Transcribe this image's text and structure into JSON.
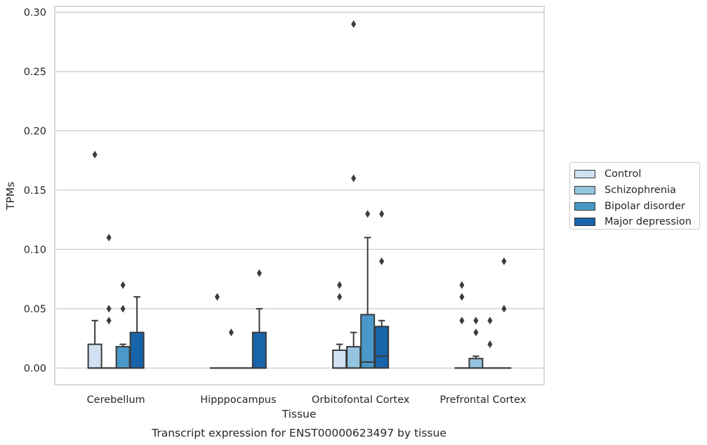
{
  "chart_data": {
    "type": "box",
    "title": "",
    "caption": "Transcript expression for ENST00000623497 by tissue",
    "xlabel": "Tissue",
    "ylabel": "TPMs",
    "ylim": [
      -0.014,
      0.305
    ],
    "yticks": [
      "0.00",
      "0.05",
      "0.10",
      "0.15",
      "0.20",
      "0.25",
      "0.30"
    ],
    "grid": true,
    "legend_position": "right",
    "categories": [
      "Cerebellum",
      "Hipppocampus",
      "Orbitofontal Cortex",
      "Prefrontal Cortex"
    ],
    "series": [
      {
        "name": "Control",
        "color": "#d0e1f2",
        "boxes": [
          {
            "q1": 0.0,
            "median": 0.0,
            "q3": 0.02,
            "whisker_low": 0.0,
            "whisker_high": 0.04,
            "outliers": [
              0.18
            ]
          },
          {
            "q1": 0.0,
            "median": 0.0,
            "q3": 0.0,
            "whisker_low": 0.0,
            "whisker_high": 0.0,
            "outliers": [
              0.06
            ]
          },
          {
            "q1": 0.0,
            "median": 0.0,
            "q3": 0.015,
            "whisker_low": 0.0,
            "whisker_high": 0.02,
            "outliers": [
              0.06,
              0.07
            ]
          },
          {
            "q1": 0.0,
            "median": 0.0,
            "q3": 0.0,
            "whisker_low": 0.0,
            "whisker_high": 0.0,
            "outliers": [
              0.04,
              0.06,
              0.07
            ]
          }
        ]
      },
      {
        "name": "Schizophrenia",
        "color": "#94c4df",
        "boxes": [
          {
            "q1": 0.0,
            "median": 0.0,
            "q3": 0.0,
            "whisker_low": 0.0,
            "whisker_high": 0.0,
            "outliers": [
              0.04,
              0.05,
              0.11
            ]
          },
          {
            "q1": 0.0,
            "median": 0.0,
            "q3": 0.0,
            "whisker_low": 0.0,
            "whisker_high": 0.0,
            "outliers": [
              0.03
            ]
          },
          {
            "q1": 0.0,
            "median": 0.0,
            "q3": 0.018,
            "whisker_low": 0.0,
            "whisker_high": 0.03,
            "outliers": [
              0.16,
              0.29
            ]
          },
          {
            "q1": 0.0,
            "median": 0.0,
            "q3": 0.008,
            "whisker_low": 0.0,
            "whisker_high": 0.01,
            "outliers": [
              0.03,
              0.04
            ]
          }
        ]
      },
      {
        "name": "Bipolar disorder",
        "color": "#4a98c9",
        "boxes": [
          {
            "q1": 0.0,
            "median": 0.0,
            "q3": 0.018,
            "whisker_low": 0.0,
            "whisker_high": 0.02,
            "outliers": [
              0.05,
              0.07
            ]
          },
          {
            "q1": 0.0,
            "median": 0.0,
            "q3": 0.0,
            "whisker_low": 0.0,
            "whisker_high": 0.0,
            "outliers": []
          },
          {
            "q1": 0.0,
            "median": 0.005,
            "q3": 0.045,
            "whisker_low": 0.0,
            "whisker_high": 0.11,
            "outliers": [
              0.13
            ]
          },
          {
            "q1": 0.0,
            "median": 0.0,
            "q3": 0.0,
            "whisker_low": 0.0,
            "whisker_high": 0.0,
            "outliers": [
              0.02,
              0.04
            ]
          }
        ]
      },
      {
        "name": "Major depression",
        "color": "#1764ab",
        "boxes": [
          {
            "q1": 0.0,
            "median": 0.0,
            "q3": 0.03,
            "whisker_low": 0.0,
            "whisker_high": 0.06,
            "outliers": []
          },
          {
            "q1": 0.0,
            "median": 0.0,
            "q3": 0.03,
            "whisker_low": 0.0,
            "whisker_high": 0.05,
            "outliers": [
              0.08
            ]
          },
          {
            "q1": 0.0,
            "median": 0.01,
            "q3": 0.035,
            "whisker_low": 0.0,
            "whisker_high": 0.04,
            "outliers": [
              0.09,
              0.13
            ]
          },
          {
            "q1": 0.0,
            "median": 0.0,
            "q3": 0.0,
            "whisker_low": 0.0,
            "whisker_high": 0.0,
            "outliers": [
              0.05,
              0.09
            ]
          }
        ]
      }
    ]
  }
}
